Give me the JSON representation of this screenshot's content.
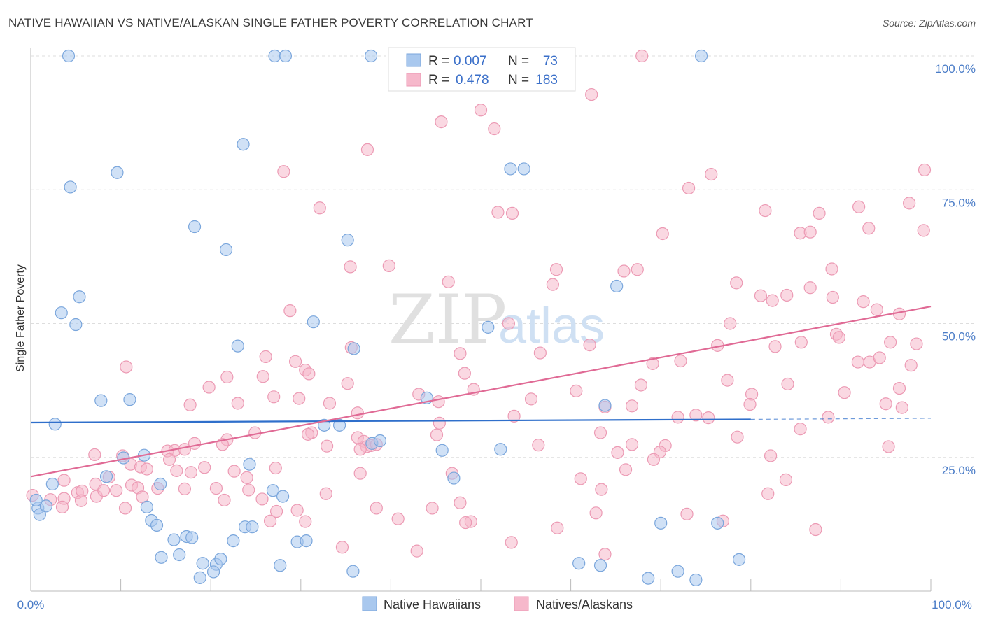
{
  "title": "NATIVE HAWAIIAN VS NATIVE/ALASKAN SINGLE FATHER POVERTY CORRELATION CHART",
  "source": "Source: ZipAtlas.com",
  "watermark": {
    "zip": "ZIP",
    "atlas": "atlas"
  },
  "colors": {
    "blue_fill": "#a9c8ee",
    "blue_stroke": "#7aa6dc",
    "blue_line": "#2f6fcb",
    "pink_fill": "#f6b8cb",
    "pink_stroke": "#ec9ab4",
    "pink_line": "#e06a95",
    "grid": "#dddddd",
    "tick_text": "#4a7cc7"
  },
  "legend_top": {
    "row1": {
      "r_label": "R =",
      "r_value": "0.007",
      "n_label": "N =",
      "n_value": "73"
    },
    "row2": {
      "r_label": "R =",
      "r_value": "0.478",
      "n_label": "N =",
      "n_value": "183"
    }
  },
  "chart_data": {
    "type": "scatter",
    "title": "NATIVE HAWAIIAN VS NATIVE/ALASKAN SINGLE FATHER POVERTY CORRELATION CHART",
    "xlabel": "",
    "ylabel": "Single Father Poverty",
    "xlim": [
      0,
      100
    ],
    "ylim": [
      0,
      100
    ],
    "x_tick_labels": [
      "0.0%",
      "100.0%"
    ],
    "y_tick_labels": [
      "25.0%",
      "50.0%",
      "75.0%",
      "100.0%"
    ],
    "y_ticks": [
      25,
      50,
      75,
      100
    ],
    "legend_position": "bottom-center",
    "series": [
      {
        "name": "Native Hawaiians",
        "r": 0.007,
        "n": 73,
        "trend": {
          "x0": 0,
          "y0": 31.5,
          "x1": 80,
          "y1": 32.1,
          "dashed_to_x": 100,
          "dashed_to_y": 32.3
        },
        "points": [
          [
            4.2,
            100
          ],
          [
            27.1,
            100
          ],
          [
            28.3,
            100
          ],
          [
            37.8,
            100
          ],
          [
            74.5,
            100
          ],
          [
            23.6,
            83.5
          ],
          [
            9.6,
            78.2
          ],
          [
            53.3,
            78.9
          ],
          [
            54.8,
            78.9
          ],
          [
            4.4,
            75.5
          ],
          [
            18.2,
            68.1
          ],
          [
            21.7,
            63.8
          ],
          [
            35.2,
            65.6
          ],
          [
            5.4,
            55
          ],
          [
            3.4,
            52
          ],
          [
            5.0,
            49.8
          ],
          [
            31.4,
            50.3
          ],
          [
            23.0,
            45.8
          ],
          [
            35.9,
            45.3
          ],
          [
            50.8,
            49.3
          ],
          [
            65.1,
            57.0
          ],
          [
            7.8,
            35.6
          ],
          [
            11.0,
            35.8
          ],
          [
            2.7,
            31.2
          ],
          [
            32.6,
            31.0
          ],
          [
            34.3,
            31.0
          ],
          [
            44.0,
            36.1
          ],
          [
            12.6,
            25.4
          ],
          [
            37.9,
            27.6
          ],
          [
            38.8,
            28.1
          ],
          [
            45.7,
            26.3
          ],
          [
            52.2,
            26.5
          ],
          [
            63.8,
            34.7
          ],
          [
            10.3,
            24.9
          ],
          [
            2.4,
            20.0
          ],
          [
            14.4,
            20.0
          ],
          [
            24.3,
            23.7
          ],
          [
            8.4,
            21.4
          ],
          [
            26.9,
            18.8
          ],
          [
            28.0,
            17.7
          ],
          [
            0.8,
            15.5
          ],
          [
            1.0,
            14.3
          ],
          [
            1.7,
            15.9
          ],
          [
            12.9,
            15.7
          ],
          [
            13.4,
            13.2
          ],
          [
            14.0,
            12.3
          ],
          [
            23.8,
            12.0
          ],
          [
            24.6,
            12.0
          ],
          [
            47.0,
            21.1
          ],
          [
            70.0,
            12.7
          ],
          [
            76.3,
            12.7
          ],
          [
            15.9,
            9.6
          ],
          [
            17.3,
            10.2
          ],
          [
            17.9,
            10.0
          ],
          [
            22.5,
            9.4
          ],
          [
            29.6,
            9.2
          ],
          [
            30.6,
            9.4
          ],
          [
            14.5,
            6.3
          ],
          [
            16.5,
            6.8
          ],
          [
            19.1,
            5.2
          ],
          [
            20.6,
            5.0
          ],
          [
            21.1,
            6.0
          ],
          [
            27.7,
            4.8
          ],
          [
            35.8,
            3.7
          ],
          [
            60.9,
            5.2
          ],
          [
            63.3,
            4.8
          ],
          [
            71.9,
            3.7
          ],
          [
            78.7,
            5.9
          ],
          [
            18.8,
            2.5
          ],
          [
            20.3,
            3.6
          ],
          [
            68.6,
            2.4
          ],
          [
            73.9,
            2.1
          ],
          [
            0.6,
            17.0
          ]
        ]
      },
      {
        "name": "Natives/Alaskans",
        "r": 0.478,
        "n": 183,
        "trend": {
          "x0": 0,
          "y0": 21.4,
          "x1": 100,
          "y1": 53.2
        },
        "points": [
          [
            67.9,
            100
          ],
          [
            62.3,
            92.8
          ],
          [
            50.0,
            89.9
          ],
          [
            45.6,
            87.7
          ],
          [
            51.5,
            86.4
          ],
          [
            37.4,
            82.5
          ],
          [
            28.1,
            78.4
          ],
          [
            75.6,
            77.9
          ],
          [
            73.1,
            75.3
          ],
          [
            99.3,
            78.7
          ],
          [
            32.1,
            71.6
          ],
          [
            51.9,
            70.8
          ],
          [
            53.5,
            70.6
          ],
          [
            81.6,
            71.1
          ],
          [
            87.6,
            70.6
          ],
          [
            92.0,
            71.8
          ],
          [
            97.6,
            72.5
          ],
          [
            70.2,
            66.8
          ],
          [
            85.5,
            66.9
          ],
          [
            86.6,
            67.1
          ],
          [
            93.1,
            67.8
          ],
          [
            99.2,
            67.4
          ],
          [
            35.5,
            60.6
          ],
          [
            39.8,
            60.8
          ],
          [
            58.4,
            60.1
          ],
          [
            65.9,
            59.8
          ],
          [
            67.4,
            60.1
          ],
          [
            89.0,
            60.2
          ],
          [
            46.4,
            57.8
          ],
          [
            58.0,
            57.3
          ],
          [
            78.4,
            57.6
          ],
          [
            84.0,
            55.3
          ],
          [
            81.1,
            55.2
          ],
          [
            86.6,
            56.7
          ],
          [
            82.4,
            54.3
          ],
          [
            28.8,
            52.4
          ],
          [
            92.5,
            54.1
          ],
          [
            89.1,
            54.9
          ],
          [
            94.0,
            52.6
          ],
          [
            96.5,
            51.8
          ],
          [
            53.1,
            50.0
          ],
          [
            77.7,
            50.0
          ],
          [
            89.5,
            48.0
          ],
          [
            89.8,
            47.4
          ],
          [
            35.6,
            45.5
          ],
          [
            47.7,
            44.4
          ],
          [
            56.6,
            44.5
          ],
          [
            62.1,
            46.0
          ],
          [
            76.3,
            45.9
          ],
          [
            82.7,
            45.7
          ],
          [
            85.6,
            46.5
          ],
          [
            95.5,
            46.5
          ],
          [
            98.4,
            46.2
          ],
          [
            26.1,
            43.8
          ],
          [
            29.4,
            42.9
          ],
          [
            30.5,
            41.3
          ],
          [
            30.9,
            40.6
          ],
          [
            48.2,
            40.7
          ],
          [
            69.1,
            42.5
          ],
          [
            72.2,
            43.0
          ],
          [
            91.9,
            42.8
          ],
          [
            93.2,
            42.8
          ],
          [
            94.3,
            43.6
          ],
          [
            97.8,
            42.2
          ],
          [
            10.6,
            41.9
          ],
          [
            21.8,
            40.0
          ],
          [
            25.8,
            40.1
          ],
          [
            35.2,
            38.8
          ],
          [
            49.2,
            37.7
          ],
          [
            67.8,
            38.5
          ],
          [
            77.4,
            39.4
          ],
          [
            80.1,
            36.8
          ],
          [
            84.1,
            38.7
          ],
          [
            90.4,
            37.1
          ],
          [
            96.5,
            37.9
          ],
          [
            19.8,
            38.1
          ],
          [
            27.0,
            36.3
          ],
          [
            29.8,
            36.0
          ],
          [
            33.2,
            35.1
          ],
          [
            43.1,
            36.8
          ],
          [
            45.3,
            35.4
          ],
          [
            55.6,
            35.9
          ],
          [
            60.6,
            37.4
          ],
          [
            63.8,
            34.4
          ],
          [
            66.8,
            34.6
          ],
          [
            79.9,
            34.9
          ],
          [
            95.0,
            35.0
          ],
          [
            96.8,
            34.3
          ],
          [
            17.7,
            34.8
          ],
          [
            23.0,
            35.1
          ],
          [
            36.3,
            33.3
          ],
          [
            53.7,
            32.7
          ],
          [
            71.9,
            32.5
          ],
          [
            73.9,
            32.9
          ],
          [
            75.3,
            32.4
          ],
          [
            88.6,
            32.5
          ],
          [
            31.2,
            29.6
          ],
          [
            45.4,
            31.4
          ],
          [
            63.3,
            29.6
          ],
          [
            78.5,
            28.8
          ],
          [
            85.5,
            30.3
          ],
          [
            24.9,
            29.6
          ],
          [
            30.8,
            29.3
          ],
          [
            36.3,
            28.7
          ],
          [
            37.0,
            28.0
          ],
          [
            45.1,
            29.2
          ],
          [
            18.2,
            27.6
          ],
          [
            21.8,
            28.3
          ],
          [
            32.9,
            27.1
          ],
          [
            37.3,
            27.0
          ],
          [
            56.4,
            27.3
          ],
          [
            66.8,
            27.4
          ],
          [
            70.5,
            27.2
          ],
          [
            95.3,
            27.0
          ],
          [
            7.1,
            25.5
          ],
          [
            10.2,
            25.3
          ],
          [
            15.2,
            26.2
          ],
          [
            16.0,
            26.3
          ],
          [
            17.1,
            26.5
          ],
          [
            21.3,
            27.4
          ],
          [
            27.2,
            23.0
          ],
          [
            36.6,
            26.5
          ],
          [
            37.8,
            27.2
          ],
          [
            38.4,
            27.4
          ],
          [
            65.2,
            25.9
          ],
          [
            69.9,
            26.0
          ],
          [
            69.2,
            24.6
          ],
          [
            82.2,
            25.3
          ],
          [
            3.7,
            20.7
          ],
          [
            7.2,
            20.0
          ],
          [
            8.7,
            21.3
          ],
          [
            11.1,
            23.7
          ],
          [
            12.2,
            23.2
          ],
          [
            12.9,
            22.8
          ],
          [
            15.4,
            24.6
          ],
          [
            16.2,
            22.5
          ],
          [
            17.8,
            22.2
          ],
          [
            19.3,
            23.1
          ],
          [
            22.6,
            22.4
          ],
          [
            24.0,
            21.2
          ],
          [
            36.6,
            22.0
          ],
          [
            46.8,
            22.0
          ],
          [
            61.1,
            21.0
          ],
          [
            66.1,
            22.7
          ],
          [
            2.2,
            17.1
          ],
          [
            3.7,
            17.3
          ],
          [
            5.2,
            18.4
          ],
          [
            5.7,
            18.7
          ],
          [
            7.3,
            17.7
          ],
          [
            8.1,
            18.8
          ],
          [
            9.5,
            18.8
          ],
          [
            11.2,
            19.8
          ],
          [
            11.9,
            19.3
          ],
          [
            14.1,
            19.2
          ],
          [
            17.1,
            19.1
          ],
          [
            20.6,
            19.2
          ],
          [
            24.2,
            18.9
          ],
          [
            25.7,
            17.2
          ],
          [
            32.8,
            18.2
          ],
          [
            63.4,
            19.0
          ],
          [
            81.9,
            18.2
          ],
          [
            83.9,
            20.8
          ],
          [
            3.5,
            15.7
          ],
          [
            5.6,
            16.9
          ],
          [
            10.5,
            15.5
          ],
          [
            12.4,
            17.6
          ],
          [
            21.5,
            17.0
          ],
          [
            27.3,
            14.9
          ],
          [
            29.6,
            15.1
          ],
          [
            38.4,
            15.5
          ],
          [
            44.6,
            15.5
          ],
          [
            47.7,
            16.5
          ],
          [
            62.8,
            14.6
          ],
          [
            72.9,
            14.4
          ],
          [
            26.6,
            13.1
          ],
          [
            30.5,
            13.0
          ],
          [
            40.8,
            13.5
          ],
          [
            48.9,
            13.0
          ],
          [
            58.5,
            11.8
          ],
          [
            76.9,
            13.1
          ],
          [
            87.2,
            11.5
          ],
          [
            48.3,
            12.8
          ],
          [
            53.4,
            9.1
          ],
          [
            63.8,
            6.9
          ],
          [
            42.9,
            7.5
          ],
          [
            34.6,
            8.2
          ],
          [
            0.2,
            17.9
          ]
        ]
      }
    ]
  },
  "legend_bottom": {
    "item1": "Native Hawaiians",
    "item2": "Natives/Alaskans"
  }
}
